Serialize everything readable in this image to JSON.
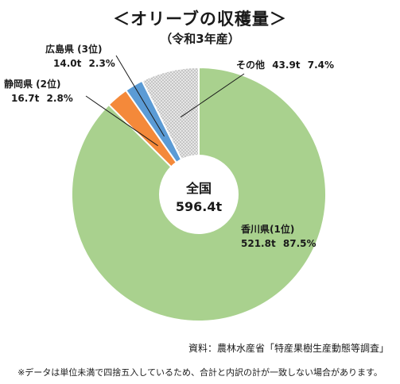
{
  "chart_data": {
    "type": "pie",
    "title": "＜オリーブの収穫量＞",
    "subtitle": "（令和3年産）",
    "unit": "t",
    "total_label": "全国",
    "total_value": "596.4t",
    "total": 596.4,
    "series": [
      {
        "label": "香川県(1位)",
        "value": 521.8,
        "value_text": "521.8t",
        "percent": 87.5,
        "percent_text": "87.5%",
        "color": "#a9d18e"
      },
      {
        "label": "静岡県 (2位)",
        "value": 16.7,
        "value_text": "16.7t",
        "percent": 2.8,
        "percent_text": "2.8%",
        "color": "#f4893a"
      },
      {
        "label": "広島県 (3位)",
        "value": 14.0,
        "value_text": "14.0t",
        "percent": 2.3,
        "percent_text": "2.3%",
        "color": "#5b9bd5"
      },
      {
        "label": "その他",
        "value": 43.9,
        "value_text": "43.9t",
        "percent": 7.4,
        "percent_text": "7.4%",
        "color": "#d9d9d9",
        "pattern": "dotted"
      }
    ]
  },
  "source": "資料：農林水産省「特産果樹生産動態等調査」",
  "note": "※データは単位未満で四捨五入しているため、合計と内訳の計が一致しない場合があります。"
}
